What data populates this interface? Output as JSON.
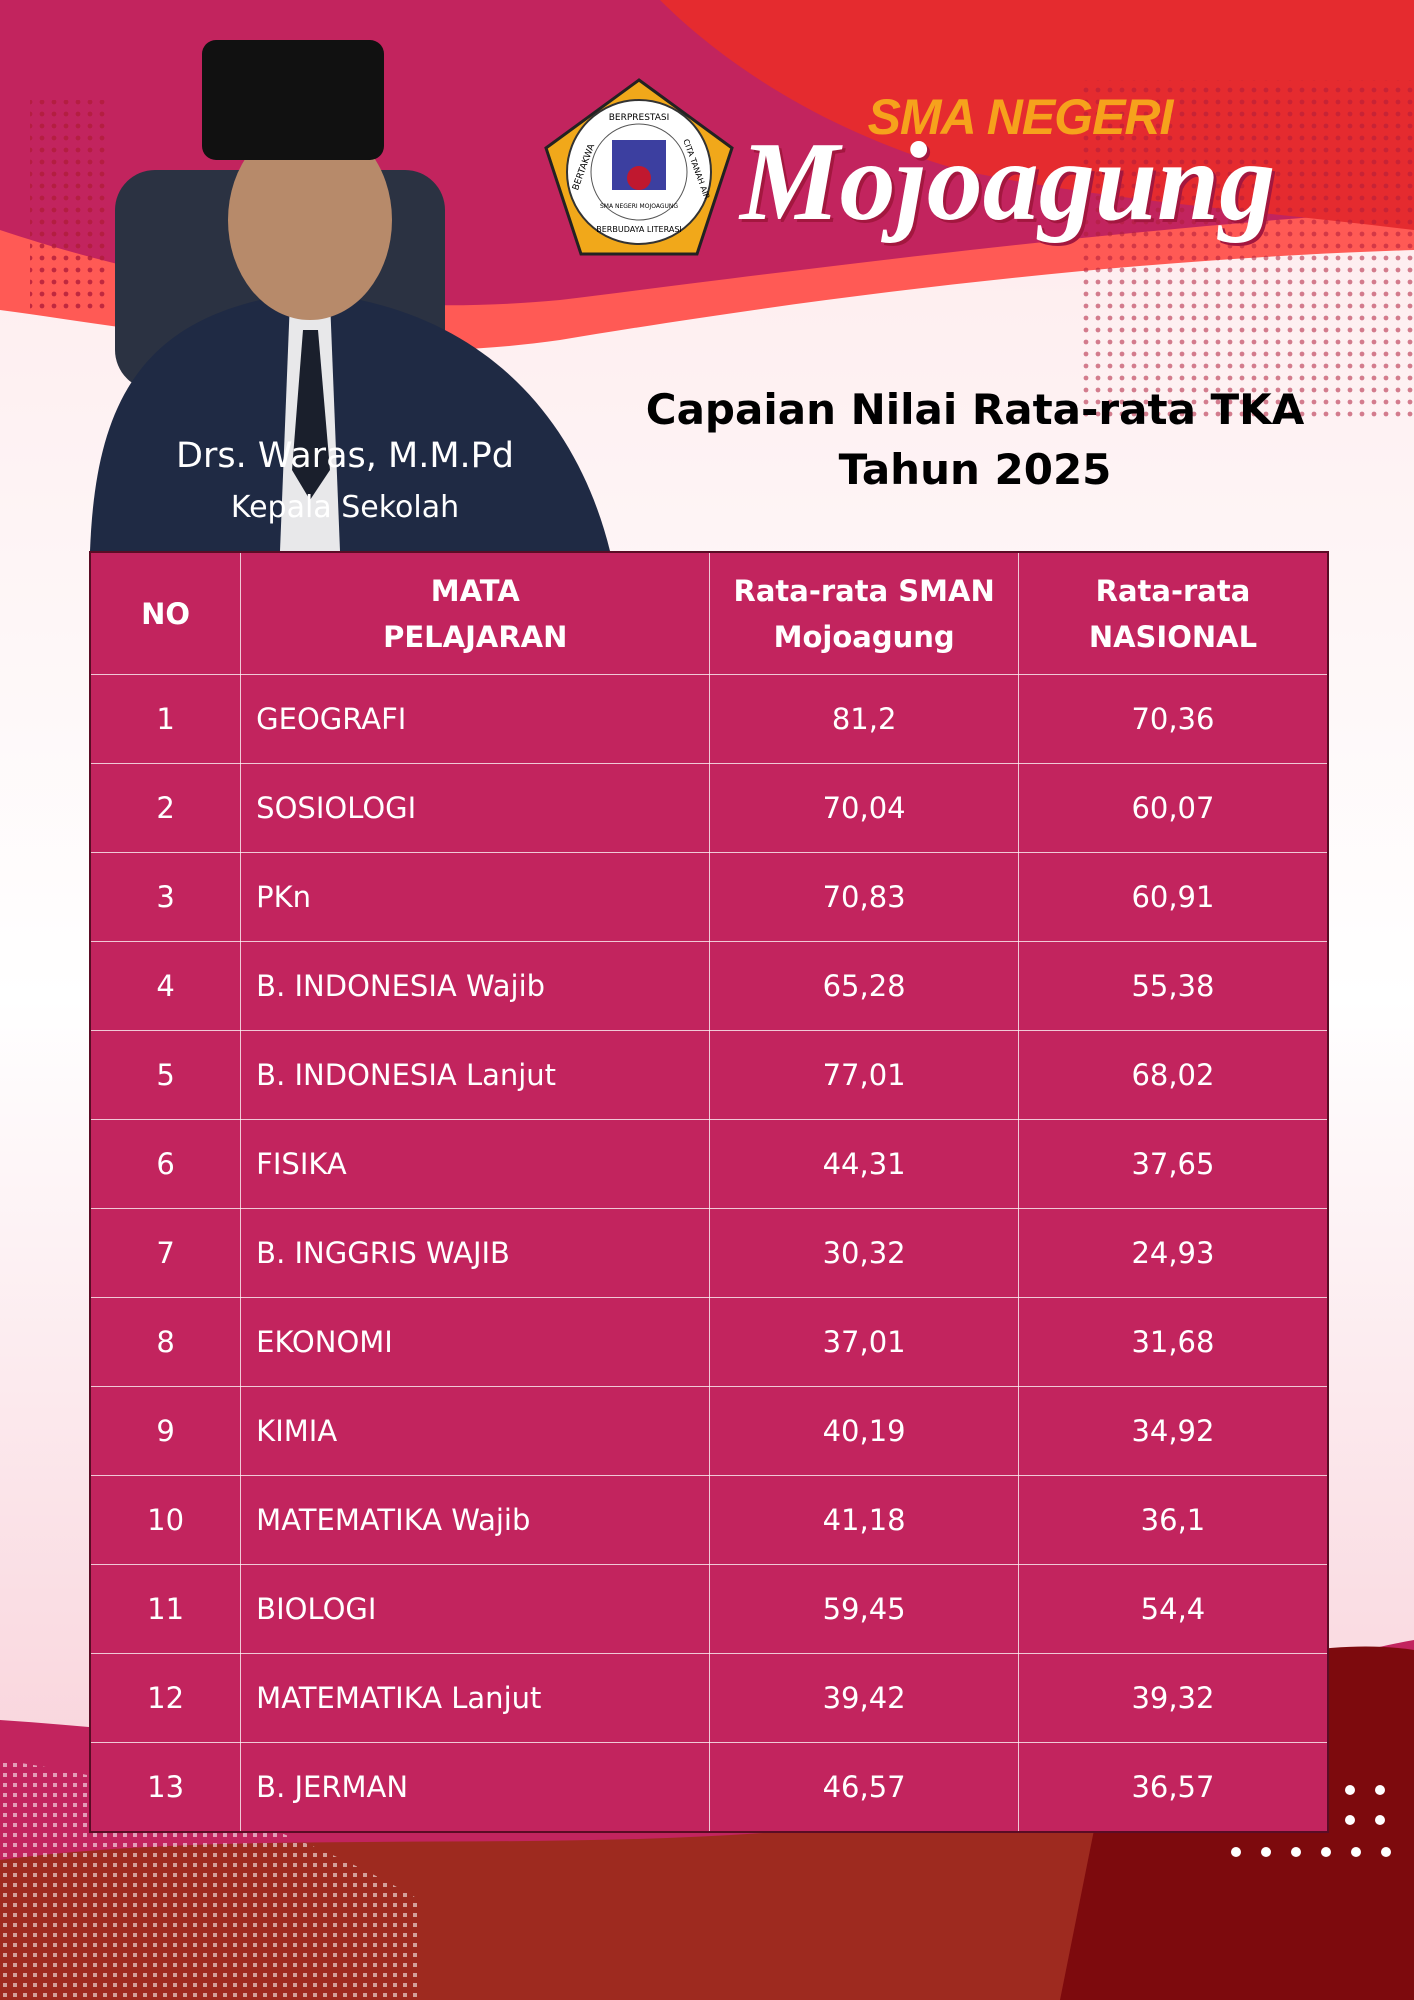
{
  "header": {
    "school_label": "SMA NEGERI",
    "school_name": "Mojoagung",
    "logo": [
      "BERTAKWA",
      "BERPRESTASI",
      "CITA TANAH AIR",
      "SMA NEGERI MOJOAGUNG",
      "BERBUDAYA LITERASI"
    ]
  },
  "principal": {
    "name": "Drs. Waras, M.M.Pd",
    "position": "Kepala Sekolah"
  },
  "title": [
    "Capaian Nilai Rata-rata TKA",
    "Tahun 2025"
  ],
  "table": {
    "columns": [
      "NO",
      "MATA PELAJARAN",
      "Rata-rata SMAN Mojoagung",
      "Rata-rata NASIONAL"
    ],
    "rows": [
      [
        "1",
        "GEOGRAFI",
        "81,2",
        "70,36"
      ],
      [
        "2",
        "SOSIOLOGI",
        "70,04",
        "60,07"
      ],
      [
        "3",
        "PKn",
        "70,83",
        "60,91"
      ],
      [
        "4",
        "B. INDONESIA Wajib",
        "65,28",
        "55,38"
      ],
      [
        "5",
        "B. INDONESIA Lanjut",
        "77,01",
        "68,02"
      ],
      [
        "6",
        "FISIKA",
        "44,31",
        "37,65"
      ],
      [
        "7",
        "B. INGGRIS WAJIB",
        "30,32",
        "24,93"
      ],
      [
        "8",
        "EKONOMI",
        "37,01",
        "31,68"
      ],
      [
        "9",
        "KIMIA",
        "40,19",
        "34,92"
      ],
      [
        "10",
        "MATEMATIKA Wajib",
        "41,18",
        "36,1"
      ],
      [
        "11",
        "BIOLOGI",
        "59,45",
        "54,4"
      ],
      [
        "12",
        "MATEMATIKA Lanjut",
        "39,42",
        "39,32"
      ],
      [
        "13",
        "B. JERMAN",
        "46,57",
        "36,57"
      ]
    ]
  }
}
